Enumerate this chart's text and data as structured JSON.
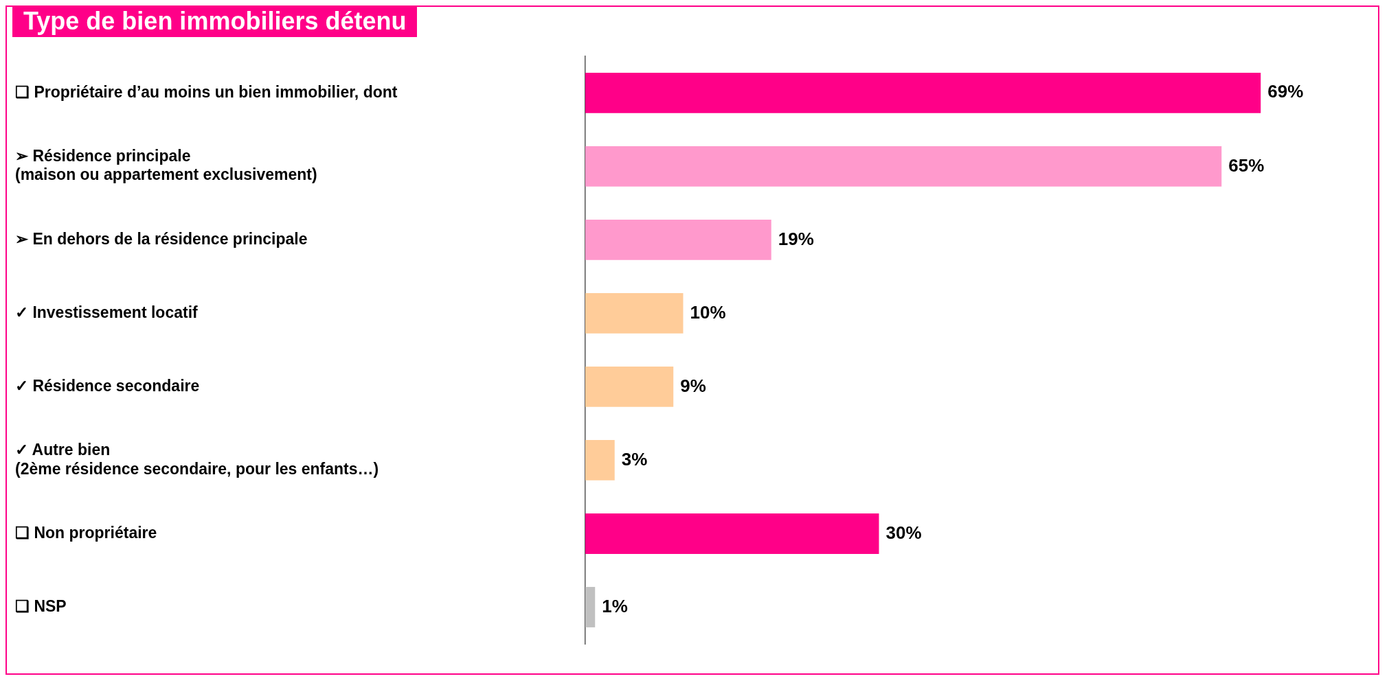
{
  "chart_data": {
    "type": "bar",
    "orientation": "horizontal",
    "title": "Type de bien immobiliers détenu",
    "categories": [
      "❑ Propriétaire d’au moins un bien immobilier, dont",
      "➢ Résidence principale\n(maison ou appartement exclusivement)",
      "➢ En dehors de la résidence principale",
      "✓ Investissement locatif",
      "✓ Résidence secondaire",
      "✓ Autre bien\n(2ème résidence secondaire, pour les enfants…)",
      "❑ Non propriétaire",
      "❑ NSP"
    ],
    "values": [
      69,
      65,
      19,
      10,
      9,
      3,
      30,
      1
    ],
    "colors": [
      "#ff0088",
      "#ff99cc",
      "#ff99cc",
      "#ffcc99",
      "#ffcc99",
      "#ffcc99",
      "#ff0088",
      "#c0c0c0"
    ],
    "value_labels": [
      "69%",
      "65%",
      "19%",
      "10%",
      "9%",
      "3%",
      "30%",
      "1%"
    ],
    "tick_labels": "y"
  }
}
